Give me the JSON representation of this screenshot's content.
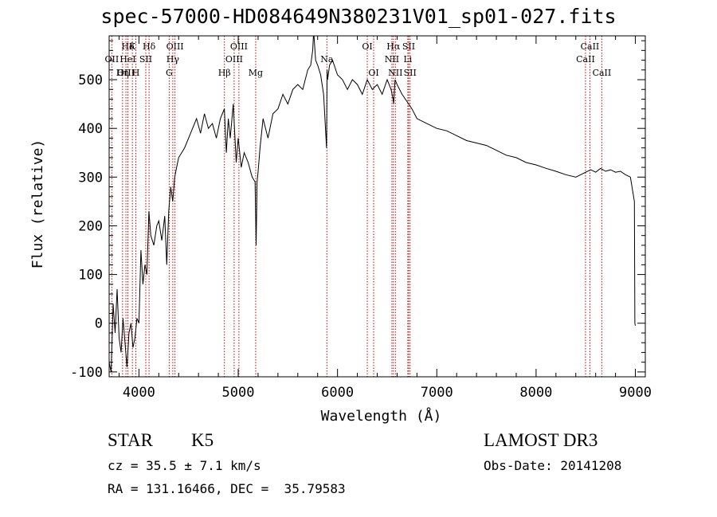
{
  "chart_data": {
    "type": "line",
    "title": "spec-57000-HD084649N380231V01_sp01-027.fits",
    "xlabel": "Wavelength (Å)",
    "ylabel": "Flux (relative)",
    "xlim": [
      3700,
      9100
    ],
    "ylim": [
      -110,
      590
    ],
    "xticks": [
      4000,
      5000,
      6000,
      7000,
      8000,
      9000
    ],
    "yticks": [
      -100,
      0,
      100,
      200,
      300,
      400,
      500
    ],
    "series": [
      {
        "name": "flux",
        "x": [
          3700,
          3720,
          3740,
          3760,
          3780,
          3800,
          3820,
          3840,
          3860,
          3880,
          3900,
          3920,
          3940,
          3960,
          3980,
          4000,
          4020,
          4040,
          4060,
          4080,
          4100,
          4120,
          4150,
          4180,
          4200,
          4230,
          4260,
          4280,
          4300,
          4320,
          4340,
          4360,
          4380,
          4400,
          4430,
          4460,
          4500,
          4540,
          4580,
          4620,
          4660,
          4700,
          4740,
          4780,
          4820,
          4860,
          4880,
          4900,
          4920,
          4950,
          4980,
          5000,
          5030,
          5060,
          5100,
          5140,
          5170,
          5180,
          5190,
          5200,
          5220,
          5250,
          5300,
          5350,
          5400,
          5450,
          5500,
          5550,
          5600,
          5650,
          5700,
          5730,
          5750,
          5760,
          5780,
          5800,
          5830,
          5860,
          5890,
          5895,
          5900,
          5920,
          5950,
          6000,
          6050,
          6100,
          6150,
          6200,
          6250,
          6300,
          6350,
          6400,
          6450,
          6500,
          6540,
          6560,
          6565,
          6580,
          6600,
          6650,
          6700,
          6750,
          6800,
          6900,
          7000,
          7100,
          7200,
          7300,
          7400,
          7500,
          7600,
          7700,
          7800,
          7900,
          8000,
          8100,
          8200,
          8300,
          8400,
          8500,
          8550,
          8600,
          8650,
          8700,
          8750,
          8800,
          8850,
          8900,
          8950,
          8990,
          8995,
          9000
        ],
        "values": [
          -80,
          -100,
          40,
          -20,
          70,
          -30,
          -60,
          10,
          -40,
          -90,
          -20,
          0,
          -50,
          -30,
          10,
          0,
          150,
          80,
          120,
          100,
          230,
          180,
          160,
          200,
          210,
          170,
          220,
          120,
          230,
          280,
          250,
          300,
          320,
          340,
          350,
          360,
          380,
          400,
          420,
          390,
          430,
          400,
          410,
          380,
          420,
          440,
          350,
          420,
          380,
          450,
          330,
          380,
          320,
          350,
          330,
          300,
          290,
          160,
          290,
          310,
          360,
          420,
          380,
          430,
          440,
          470,
          450,
          480,
          490,
          480,
          520,
          530,
          560,
          600,
          540,
          530,
          510,
          470,
          360,
          520,
          500,
          530,
          540,
          510,
          500,
          480,
          500,
          490,
          470,
          500,
          480,
          490,
          470,
          500,
          480,
          460,
          450,
          500,
          490,
          470,
          455,
          440,
          420,
          410,
          400,
          395,
          385,
          375,
          370,
          365,
          355,
          345,
          340,
          330,
          325,
          318,
          312,
          305,
          300,
          310,
          315,
          310,
          318,
          312,
          315,
          310,
          312,
          305,
          300,
          250,
          0,
          -5
        ]
      }
    ],
    "line_markers": [
      {
        "label": "Hδ",
        "x": 3889,
        "row": 1
      },
      {
        "label": "OII",
        "x": 3727,
        "row": 2
      },
      {
        "label": "OIII",
        "x": 3869,
        "row": 3
      },
      {
        "label": "K",
        "x": 3934,
        "row": 1
      },
      {
        "label": "HeI",
        "x": 3888,
        "row": 2
      },
      {
        "label": "Hη",
        "x": 3835,
        "row": 3
      },
      {
        "label": "SII",
        "x": 4069,
        "row": 2
      },
      {
        "label": "H",
        "x": 3969,
        "row": 3
      },
      {
        "label": "Hδ",
        "x": 4102,
        "row": 1
      },
      {
        "label": "OIII",
        "x": 4363,
        "row": 1
      },
      {
        "label": "Hγ",
        "x": 4341,
        "row": 2
      },
      {
        "label": "G",
        "x": 4305,
        "row": 3
      },
      {
        "label": "OIII",
        "x": 5007,
        "row": 1
      },
      {
        "label": "OIII",
        "x": 4959,
        "row": 2
      },
      {
        "label": "Hβ",
        "x": 4861,
        "row": 3
      },
      {
        "label": "Mg",
        "x": 5176,
        "row": 3
      },
      {
        "label": "Na",
        "x": 5893,
        "row": 2
      },
      {
        "label": "OI",
        "x": 6300,
        "row": 1
      },
      {
        "label": "OI",
        "x": 6364,
        "row": 3
      },
      {
        "label": "Hα",
        "x": 6563,
        "row": 1
      },
      {
        "label": "SII",
        "x": 6717,
        "row": 1
      },
      {
        "label": "NII",
        "x": 6548,
        "row": 2
      },
      {
        "label": "Li",
        "x": 6708,
        "row": 2
      },
      {
        "label": "NII",
        "x": 6583,
        "row": 3
      },
      {
        "label": "SII",
        "x": 6731,
        "row": 3
      },
      {
        "label": "CaII",
        "x": 8542,
        "row": 1
      },
      {
        "label": "CaII",
        "x": 8498,
        "row": 2
      },
      {
        "label": "CaII",
        "x": 8662,
        "row": 3
      }
    ],
    "marker_color": "#cc0000",
    "line_color": "#000000"
  },
  "info": {
    "class_label": "STAR",
    "subclass": "K5",
    "survey": "LAMOST DR3",
    "cz": "cz = 35.5 ± 7.1 km/s",
    "obs_date": "Obs-Date: 20141208",
    "coords": "RA = 131.16466, DEC =  35.79583"
  }
}
